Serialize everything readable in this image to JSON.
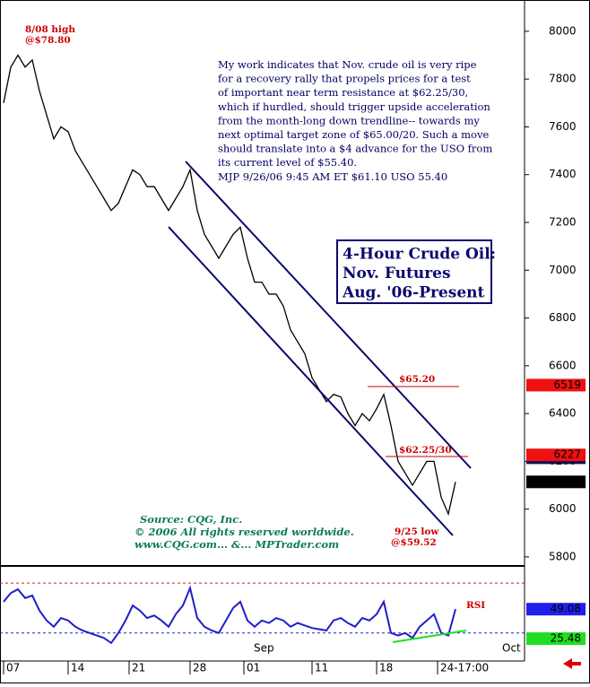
{
  "chart_data": {
    "type": "line",
    "title": [
      "4-Hour Crude Oil:",
      "Nov. Futures",
      "Aug. '06-Present"
    ],
    "commentary": [
      "My work indicates that Nov. crude oil is very ripe",
      "for a recovery rally that propels prices for a test",
      "of important near term resistance at $62.25/30,",
      "which if hurdled, should trigger upside acceleration",
      "from the month-long down trendline-- towards my",
      "next optimal target zone of $65.00/20. Such a move",
      "should translate into a $4 advance for the USO from",
      "its current level of $55.40.",
      "MJP  9/26/06  9:45 AM ET  $61.10  USO 55.40"
    ],
    "annotations": {
      "high": [
        "8/08 high",
        "@$78.80"
      ],
      "target": "$65.20",
      "resistance": "$62.25/30",
      "low": [
        "9/25 low",
        "@$59.52"
      ],
      "rsi": "RSI"
    },
    "source": [
      "Source: CQG, Inc.",
      "© 2006 All rights reserved worldwide.",
      "www.CQG.com... &... MPTrader.com"
    ],
    "color": "#000000",
    "x": [
      0,
      1,
      2,
      3,
      4,
      5,
      6,
      7,
      8,
      9,
      10,
      11,
      12,
      13,
      14,
      15,
      16,
      17,
      18,
      19,
      20,
      21,
      22,
      23,
      24,
      25,
      26,
      27,
      28,
      29,
      30,
      31,
      32,
      33,
      34,
      35,
      36,
      37,
      38,
      39,
      40,
      41,
      42,
      43,
      44,
      45,
      46,
      47,
      48,
      49,
      50,
      51,
      52,
      53,
      54,
      55,
      56,
      57,
      58,
      59,
      60,
      61,
      62,
      63
    ],
    "values": [
      7700,
      7850,
      7900,
      7850,
      7880,
      7750,
      7650,
      7550,
      7600,
      7580,
      7500,
      7450,
      7400,
      7350,
      7300,
      7250,
      7280,
      7350,
      7420,
      7400,
      7350,
      7350,
      7300,
      7250,
      7300,
      7350,
      7420,
      7250,
      7150,
      7100,
      7050,
      7100,
      7150,
      7180,
      7050,
      6950,
      6950,
      6900,
      6900,
      6850,
      6750,
      6700,
      6650,
      6550,
      6500,
      6450,
      6480,
      6470,
      6400,
      6350,
      6400,
      6370,
      6420,
      6480,
      6350,
      6200,
      6150,
      6100,
      6150,
      6200,
      6200,
      6050,
      5980,
      6114
    ],
    "xlim": [
      -0.5,
      72.5
    ],
    "xticks": [
      {
        "value": 0,
        "label": "07"
      },
      {
        "value": 9,
        "label": "14"
      },
      {
        "value": 17.5,
        "label": "21"
      },
      {
        "value": 26,
        "label": "28"
      },
      {
        "value": 33.5,
        "label": "01"
      },
      {
        "value": 43,
        "label": "11"
      },
      {
        "value": 52,
        "label": "18"
      },
      {
        "value": 60.5,
        "label": "24-17:00"
      }
    ],
    "months": [
      "Sep",
      "Oct"
    ],
    "ylim": [
      5766,
      8131
    ],
    "yticks": [
      5800,
      6000,
      6200,
      6400,
      6600,
      6800,
      7000,
      7200,
      7400,
      7600,
      7800,
      8000
    ],
    "price_markers": [
      {
        "value": 6519,
        "color": "#ee1111"
      },
      {
        "value": 6215,
        "color": "#101050"
      },
      {
        "value": 6227,
        "color": "#ee1111"
      },
      {
        "value": 6114,
        "color": "#000000"
      }
    ],
    "rsi": {
      "color": "#1f1fcc",
      "ylim": [
        9,
        83
      ],
      "levels": [
        70,
        30
      ],
      "values": [
        55,
        62,
        65,
        58,
        60,
        48,
        40,
        35,
        42,
        40,
        35,
        32,
        30,
        28,
        26,
        22,
        30,
        40,
        52,
        48,
        42,
        44,
        40,
        35,
        45,
        52,
        66,
        42,
        35,
        32,
        30,
        40,
        50,
        55,
        40,
        35,
        40,
        38,
        42,
        40,
        35,
        38,
        36,
        34,
        33,
        32,
        40,
        42,
        38,
        35,
        42,
        40,
        45,
        55,
        30,
        28,
        30,
        26,
        35,
        40,
        45,
        30,
        28,
        49.08
      ],
      "markers": [
        {
          "value": 49.08,
          "color": "#1f1fee"
        },
        {
          "value": 25.48,
          "color": "#22dd22"
        }
      ]
    }
  }
}
